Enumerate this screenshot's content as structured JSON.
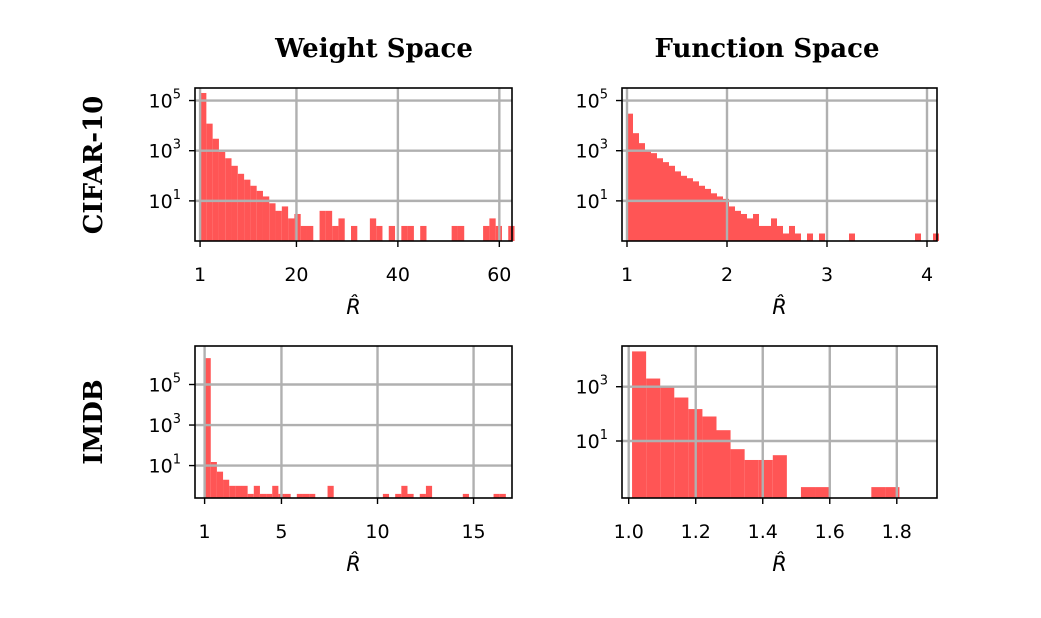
{
  "col_titles": [
    "Weight Space",
    "Function Space"
  ],
  "row_titles": [
    "CIFAR-10",
    "IMDB"
  ],
  "colors": {
    "bar": "#ff5555",
    "grid": "#b0b0b0",
    "frame": "#000000"
  },
  "chart_data": [
    {
      "type": "bar",
      "subtype": "histogram",
      "title": "Weight Space",
      "row": "CIFAR-10",
      "xlabel": "R̂",
      "ylabel": "",
      "yscale": "log",
      "xlim": [
        0.0,
        62.5
      ],
      "ylim_exp": [
        -0.6,
        5.5
      ],
      "xticks": [
        1,
        20,
        40,
        60
      ],
      "yticks": [
        1,
        3,
        5
      ],
      "grid": true,
      "bin_start": 1.0,
      "bin_width": 1.24,
      "counts": [
        200000,
        12000,
        3000,
        900,
        500,
        250,
        120,
        70,
        40,
        25,
        15,
        8,
        4,
        6,
        2,
        3,
        1,
        1,
        0,
        4,
        4,
        1,
        2,
        0,
        1,
        0,
        0,
        2,
        1,
        0,
        1,
        0,
        1,
        1,
        0,
        1,
        0,
        0,
        0,
        0,
        1,
        1,
        0,
        0,
        0,
        1,
        2,
        1,
        0,
        1,
        0
      ]
    },
    {
      "type": "bar",
      "subtype": "histogram",
      "title": "Function Space",
      "row": "CIFAR-10",
      "xlabel": "R̂",
      "ylabel": "",
      "yscale": "log",
      "xlim": [
        0.95,
        4.1
      ],
      "ylim_exp": [
        -0.6,
        5.5
      ],
      "xticks": [
        1,
        2,
        3,
        4
      ],
      "yticks": [
        1,
        3,
        5
      ],
      "grid": true,
      "bin_start": 1.0,
      "bin_width": 0.06,
      "counts": [
        30000,
        5000,
        2000,
        1000,
        800,
        500,
        350,
        250,
        150,
        100,
        80,
        60,
        40,
        30,
        20,
        15,
        12,
        6,
        4,
        3,
        2,
        3,
        1,
        1,
        2,
        1,
        0.5,
        1,
        0.5,
        0,
        0.5,
        0,
        0.5,
        0,
        0,
        0,
        0,
        0.5,
        0,
        0,
        0,
        0,
        0,
        0,
        0,
        0,
        0,
        0,
        0.5,
        0,
        0,
        0.5
      ]
    },
    {
      "type": "bar",
      "subtype": "histogram",
      "title": "",
      "row": "IMDB",
      "xlabel": "R̂",
      "ylabel": "",
      "yscale": "log",
      "xlim": [
        0.5,
        17.0
      ],
      "ylim_exp": [
        -0.6,
        6.9
      ],
      "xticks": [
        1,
        5,
        10,
        15
      ],
      "yticks": [
        1,
        3,
        5
      ],
      "grid": true,
      "bin_start": 1.0,
      "bin_width": 0.32,
      "counts": [
        2000000,
        15,
        5,
        2,
        1,
        1,
        1,
        0.4,
        1,
        0.4,
        0.4,
        1,
        0.4,
        0.4,
        0,
        0.4,
        0.4,
        0.4,
        0,
        0,
        1,
        0,
        0,
        0,
        0,
        0,
        0,
        0,
        0,
        0.4,
        0,
        0.4,
        1,
        0.4,
        0,
        0.4,
        1,
        0,
        0,
        0,
        0,
        0,
        0.4,
        0,
        0,
        0,
        0,
        0.4,
        0.4
      ]
    },
    {
      "type": "bar",
      "subtype": "histogram",
      "title": "",
      "row": "IMDB",
      "xlabel": "R̂",
      "ylabel": "",
      "yscale": "log",
      "xlim": [
        0.98,
        1.92
      ],
      "ylim_exp": [
        -1.1,
        4.5
      ],
      "xticks": [
        1.0,
        1.2,
        1.4,
        1.6,
        1.8
      ],
      "yticks": [
        1,
        3
      ],
      "grid": true,
      "bin_start": 1.01,
      "bin_width": 0.042,
      "counts": [
        20000,
        2000,
        1000,
        400,
        150,
        80,
        25,
        5,
        2,
        2,
        3,
        0,
        0.2,
        0.2,
        0,
        0,
        0,
        0.2,
        0.2
      ]
    }
  ]
}
